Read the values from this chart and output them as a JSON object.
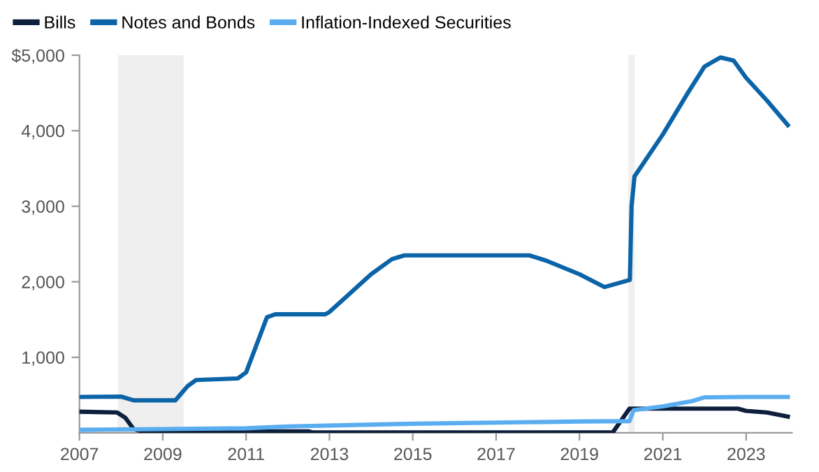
{
  "chart_data": {
    "type": "line",
    "series": [
      {
        "name": "Bills",
        "color": "#0d1f3c",
        "x": [
          2007,
          2007.9,
          2008.1,
          2008.3,
          2008.5,
          2012.5,
          2012.6,
          2019.8,
          2020.2,
          2022.8,
          2023.0,
          2023.5,
          2024.0
        ],
        "values": [
          280,
          270,
          200,
          50,
          20,
          20,
          5,
          5,
          320,
          320,
          290,
          270,
          215
        ]
      },
      {
        "name": "Notes and Bonds",
        "color": "#0b63a8",
        "x": [
          2007,
          2008,
          2008.3,
          2009.3,
          2009.6,
          2009.8,
          2010.8,
          2011,
          2011.5,
          2011.7,
          2012.9,
          2013,
          2014,
          2014.5,
          2014.8,
          2016,
          2017.8,
          2018.2,
          2019,
          2019.6,
          2020.21,
          2020.25,
          2020.32,
          2021,
          2021.6,
          2022,
          2022.38,
          2022.7,
          2023,
          2023.5,
          2024
        ],
        "values": [
          475,
          480,
          430,
          430,
          620,
          700,
          720,
          800,
          1530,
          1570,
          1570,
          1600,
          2100,
          2300,
          2350,
          2350,
          2350,
          2280,
          2100,
          1930,
          2025,
          3000,
          3395,
          3950,
          4500,
          4850,
          4970,
          4930,
          4700,
          4400,
          4075
        ]
      },
      {
        "name": "Inflation-Indexed Securities",
        "color": "#5aaef0",
        "x": [
          2007,
          2009,
          2011,
          2012,
          2015,
          2019,
          2020.2,
          2020.3,
          2021,
          2021.7,
          2022,
          2023,
          2024
        ],
        "values": [
          40,
          50,
          60,
          85,
          120,
          150,
          155,
          300,
          350,
          420,
          470,
          475,
          475
        ]
      }
    ],
    "xlim": [
      2007,
      2024.1
    ],
    "xticks": [
      2007,
      2009,
      2011,
      2013,
      2015,
      2017,
      2019,
      2021,
      2023
    ],
    "ylim": [
      0,
      5000
    ],
    "yticks": [
      {
        "value": 1000,
        "label": "1,000"
      },
      {
        "value": 2000,
        "label": "2,000"
      },
      {
        "value": 3000,
        "label": "3,000"
      },
      {
        "value": 4000,
        "label": "4,000"
      },
      {
        "value": 5000,
        "label": "$5,000"
      }
    ],
    "bands": [
      {
        "axis": "x",
        "from": 2007.92,
        "to": 2009.5,
        "color": "#efefef"
      },
      {
        "axis": "x",
        "from": 2020.17,
        "to": 2020.33,
        "color": "#efefef"
      }
    ],
    "legend": "top left",
    "grid": false,
    "marker": "none",
    "line_style": "solid"
  }
}
